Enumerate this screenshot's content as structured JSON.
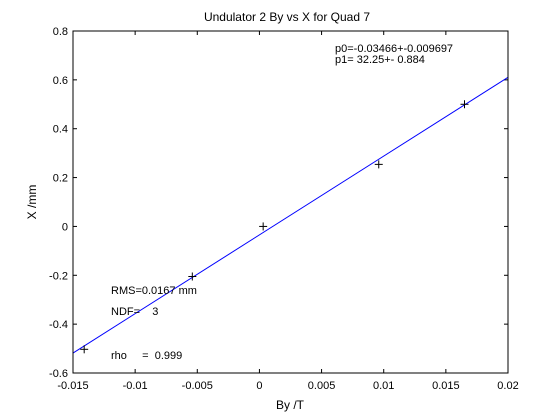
{
  "colors": {
    "background": "#ffffff",
    "axes": "#000000",
    "fit_line": "#0000ff",
    "markers": "#000000"
  },
  "chart_data": {
    "type": "scatter",
    "title": "Undulator 2 By vs X for Quad 7",
    "xlabel": "By /T",
    "ylabel": "X /mm",
    "xlim": [
      -0.015,
      0.02
    ],
    "ylim": [
      -0.6,
      0.8
    ],
    "xticks": [
      -0.015,
      -0.01,
      -0.005,
      0,
      0.005,
      0.01,
      0.015,
      0.02
    ],
    "xtick_labels": [
      "-0.015",
      "-0.01",
      "-0.005",
      "0",
      "0.005",
      "0.01",
      "0.015",
      "0.02"
    ],
    "yticks": [
      -0.6,
      -0.4,
      -0.2,
      0,
      0.2,
      0.4,
      0.6,
      0.8
    ],
    "ytick_labels": [
      "-0.6",
      "-0.4",
      "-0.2",
      "0",
      "0.2",
      "0.4",
      "0.6",
      "0.8"
    ],
    "grid": false,
    "series": [
      {
        "marker": "+",
        "color": "#000000",
        "points": [
          {
            "x": -0.0141,
            "y": -0.503
          },
          {
            "x": -0.0054,
            "y": -0.205
          },
          {
            "x": 0.0003,
            "y": 0.0
          },
          {
            "x": 0.0096,
            "y": 0.254
          },
          {
            "x": 0.0165,
            "y": 0.5
          }
        ]
      }
    ],
    "fit": {
      "color": "#0000ff",
      "intercept": -0.03466,
      "slope": 32.25,
      "x_range": [
        -0.015,
        0.02
      ]
    },
    "annotations": {
      "p0": "p0=-0.03466+-0.009697",
      "p1": "p1=  32.25+- 0.884",
      "rms": "RMS=0.0167 mm",
      "ndf": "NDF=    3",
      "rho": "rho     =  0.999"
    }
  }
}
